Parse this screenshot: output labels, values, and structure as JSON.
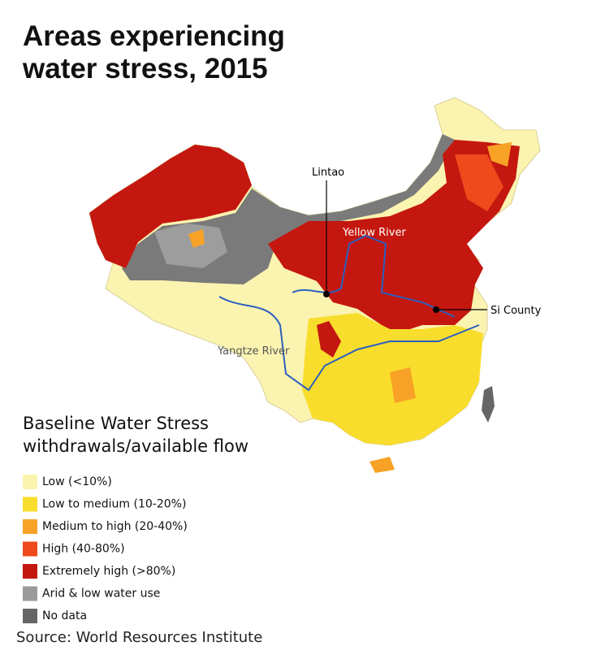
{
  "header": {
    "title": [
      "Areas experiencing",
      "water stress, 2015"
    ]
  },
  "map": {
    "labels": {
      "lintao": "Lintao",
      "yellow_river": "Yellow River",
      "si_county": "Si County",
      "yangtze_river": "Yangtze River"
    }
  },
  "legend": {
    "title": [
      "Baseline Water Stress",
      "withdrawals/available flow"
    ],
    "items": [
      {
        "label": "Low (<10%)",
        "color": "#fbf3b0"
      },
      {
        "label": "Low to medium (10-20%)",
        "color": "#f9dd2c"
      },
      {
        "label": "Medium to high (20-40%)",
        "color": "#f7a226"
      },
      {
        "label": "High (40-80%)",
        "color": "#ee4a1c"
      },
      {
        "label": "Extremely high (>80%)",
        "color": "#c4170f"
      },
      {
        "label": "Arid & low water use",
        "color": "#9a9a9a"
      },
      {
        "label": "No data",
        "color": "#666666"
      }
    ]
  },
  "footer": {
    "source": "Source: World Resources Institute"
  }
}
